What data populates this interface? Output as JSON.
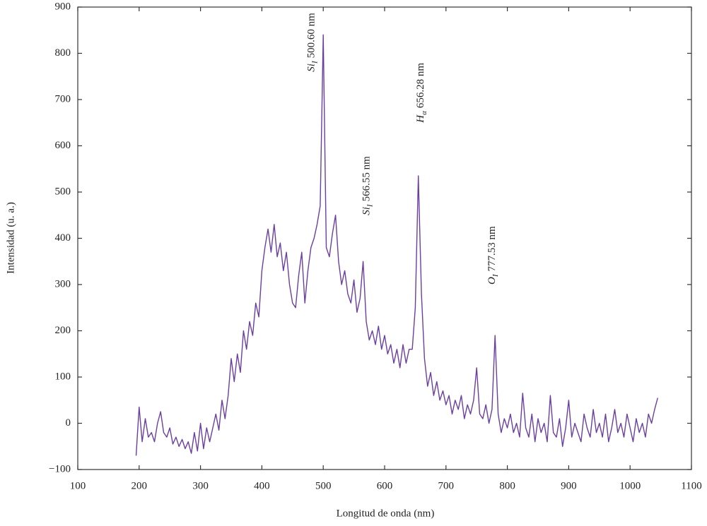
{
  "chart_data": {
    "type": "line",
    "xlabel": "Longitud de onda (nm)",
    "ylabel": "Intensidad (u. a.)",
    "x": [
      195,
      200,
      205,
      210,
      215,
      220,
      225,
      230,
      235,
      240,
      245,
      250,
      255,
      260,
      265,
      270,
      275,
      280,
      285,
      290,
      295,
      300,
      305,
      310,
      315,
      320,
      325,
      330,
      335,
      340,
      345,
      350,
      355,
      360,
      365,
      370,
      375,
      380,
      385,
      390,
      395,
      400,
      405,
      410,
      415,
      420,
      425,
      430,
      435,
      440,
      445,
      450,
      455,
      460,
      465,
      470,
      475,
      480,
      485,
      490,
      495,
      500,
      505,
      510,
      515,
      520,
      525,
      530,
      535,
      540,
      545,
      550,
      555,
      560,
      565,
      570,
      575,
      580,
      585,
      590,
      595,
      600,
      605,
      610,
      615,
      620,
      625,
      630,
      635,
      640,
      645,
      650,
      655,
      660,
      665,
      670,
      675,
      680,
      685,
      690,
      695,
      700,
      705,
      710,
      715,
      720,
      725,
      730,
      735,
      740,
      745,
      750,
      755,
      760,
      765,
      770,
      775,
      780,
      785,
      790,
      795,
      800,
      805,
      810,
      815,
      820,
      825,
      830,
      835,
      840,
      845,
      850,
      855,
      860,
      865,
      870,
      875,
      880,
      885,
      890,
      895,
      900,
      905,
      910,
      915,
      920,
      925,
      930,
      935,
      940,
      945,
      950,
      955,
      960,
      965,
      970,
      975,
      980,
      985,
      990,
      995,
      1000,
      1005,
      1010,
      1015,
      1020,
      1025,
      1030,
      1035,
      1040,
      1045
    ],
    "series": [
      {
        "color": "#6b3fa0",
        "values": [
          -70,
          35,
          -40,
          10,
          -30,
          -20,
          -40,
          0,
          25,
          -20,
          -30,
          -10,
          -45,
          -30,
          -50,
          -35,
          -55,
          -40,
          -65,
          -20,
          -60,
          0,
          -55,
          -10,
          -40,
          -10,
          20,
          -15,
          50,
          10,
          60,
          140,
          90,
          150,
          110,
          200,
          160,
          220,
          190,
          260,
          230,
          330,
          380,
          420,
          370,
          430,
          360,
          390,
          330,
          370,
          300,
          260,
          250,
          320,
          370,
          260,
          330,
          380,
          400,
          430,
          470,
          840,
          380,
          360,
          410,
          450,
          350,
          300,
          330,
          280,
          260,
          310,
          240,
          270,
          350,
          220,
          180,
          200,
          170,
          210,
          160,
          190,
          150,
          170,
          130,
          160,
          120,
          170,
          130,
          160,
          160,
          250,
          535,
          280,
          140,
          80,
          110,
          60,
          90,
          50,
          70,
          40,
          60,
          20,
          50,
          30,
          60,
          10,
          40,
          20,
          50,
          120,
          20,
          10,
          40,
          0,
          30,
          190,
          20,
          -20,
          10,
          -10,
          20,
          -20,
          0,
          -30,
          65,
          -10,
          -30,
          20,
          -40,
          10,
          -20,
          0,
          -40,
          60,
          -20,
          -30,
          10,
          -50,
          -10,
          50,
          -30,
          0,
          -20,
          -40,
          20,
          -10,
          -30,
          30,
          -20,
          0,
          -30,
          20,
          -40,
          -10,
          30,
          -20,
          0,
          -30,
          20,
          -10,
          -40,
          10,
          -20,
          0,
          -30,
          20,
          0,
          30,
          55
        ]
      }
    ],
    "annotations": [
      {
        "species": "Si",
        "ion": "I",
        "wavelength": "500.60 nm",
        "x": 482,
        "y": 760
      },
      {
        "species": "Si",
        "ion": "I",
        "wavelength": "566.55 nm",
        "x": 572,
        "y": 450
      },
      {
        "species": "H",
        "ion": "α",
        "wavelength": "656.28 nm",
        "x": 660,
        "y": 650
      },
      {
        "species": "O",
        "ion": "I",
        "wavelength": "777.53 nm",
        "x": 776,
        "y": 300
      }
    ],
    "xlim": [
      100,
      1100
    ],
    "xticks": [
      100,
      200,
      300,
      400,
      500,
      600,
      700,
      800,
      900,
      1000,
      1100
    ],
    "ylim": [
      -100,
      900
    ],
    "yticks": [
      {
        "value": -100,
        "label": "−100"
      },
      0,
      100,
      200,
      300,
      400,
      500,
      600,
      700,
      800,
      900
    ],
    "grid": false
  }
}
